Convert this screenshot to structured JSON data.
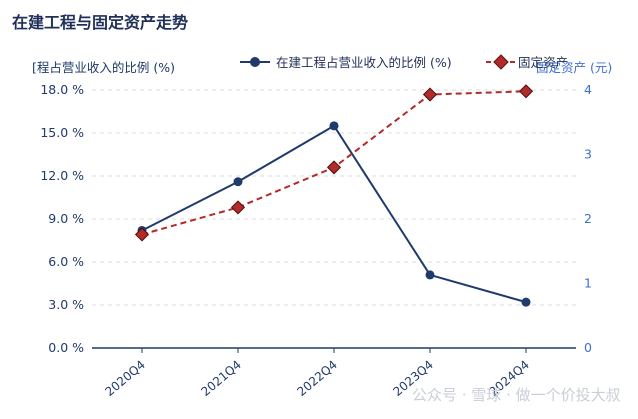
{
  "chart_data": {
    "type": "line",
    "title": "在建工程与固定资产走势",
    "categories": [
      "2020Q4",
      "2021Q4",
      "2022Q4",
      "2023Q4",
      "2024Q4"
    ],
    "y_left": {
      "label": "在建工程占营业收入的比例 (%)",
      "display_label": "[程占营业收入的比例 (%)",
      "ylim": [
        0,
        18
      ],
      "ticks": [
        "0.0 %",
        "3.0 %",
        "6.0 %",
        "9.0 %",
        "12.0 %",
        "15.0 %",
        "18.0 %"
      ],
      "tick_values": [
        0,
        3,
        6,
        9,
        12,
        15,
        18
      ]
    },
    "y_right": {
      "label": "固定资产 (元)",
      "ylim": [
        0,
        4
      ],
      "ticks": [
        "0",
        "1",
        "2",
        "3",
        "4"
      ],
      "tick_values": [
        0,
        1,
        2,
        3,
        4
      ]
    },
    "series": [
      {
        "name": "在建工程占营业收入的比例 (%)",
        "axis": "left",
        "values": [
          8.2,
          11.6,
          15.5,
          5.1,
          3.2
        ],
        "color": "#1f3a6b",
        "style": "solid",
        "marker": "circle"
      },
      {
        "name": "固定资产",
        "axis": "right",
        "values": [
          1.76,
          2.18,
          2.8,
          3.93,
          3.98
        ],
        "color": "#b22a2a",
        "style": "dashed",
        "marker": "diamond"
      }
    ],
    "grid": "horizontal-dashed",
    "legend_position": "top-center"
  },
  "watermark": "公众号 · 雪球 · 做一个价投大叔"
}
